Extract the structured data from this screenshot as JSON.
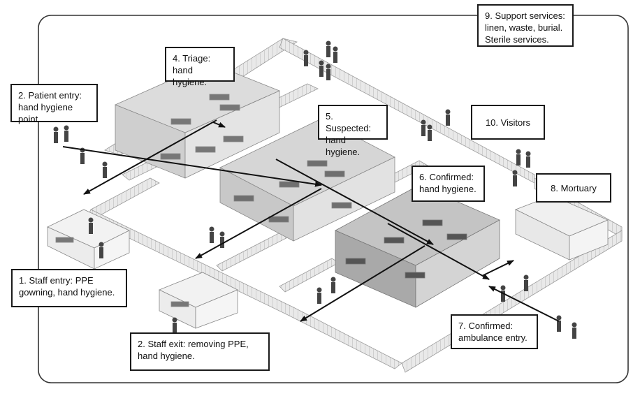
{
  "labels": {
    "staff_entry": "1. Staff entry: PPE\ngowning, hand hygiene.",
    "patient_entry": "2. Patient entry:\nhand hygiene point.",
    "staff_exit": "2. Staff exit: removing PPE,\nhand hygiene.",
    "triage": "4. Triage: hand\nhygiene.",
    "suspected": "5. Suspected:\nhand hygiene.",
    "confirmed": "6. Confirmed:\nhand hygiene.",
    "ambulance": "7. Confirmed:\nambulance entry.",
    "mortuary": "8. Mortuary",
    "support": "9. Support services:\nlinen, waste, burial.\nSterile services.",
    "visitors": "10. Visitors"
  }
}
